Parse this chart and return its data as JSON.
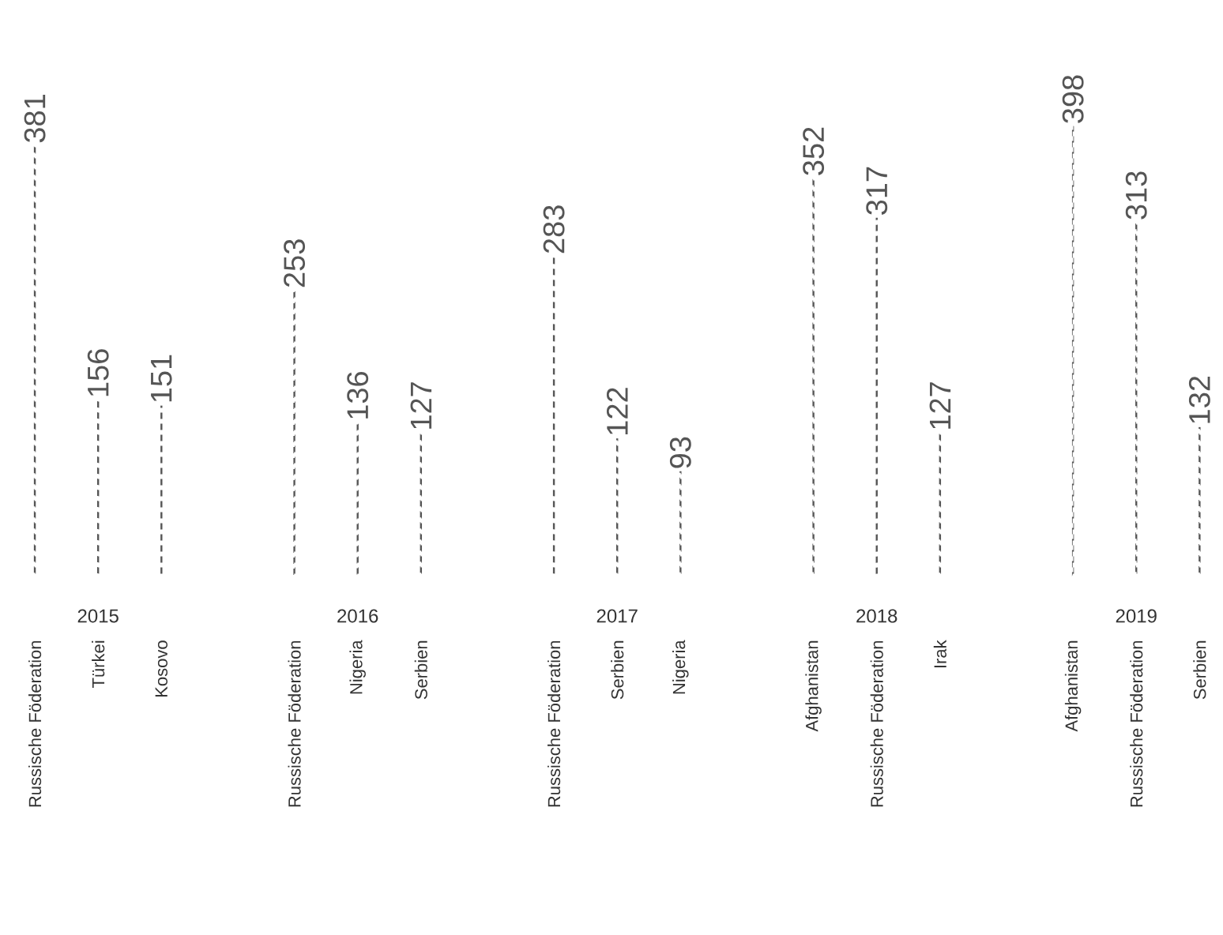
{
  "chart_data": {
    "type": "bar",
    "categories": [
      "Russische Föderation",
      "Türkei",
      "Kosovo",
      "Russische Föderation",
      "Nigeria",
      "Serbien",
      "Russische Föderation",
      "Serbien",
      "Nigeria",
      "Afghanistan",
      "Russische Föderation",
      "Irak",
      "Afghanistan",
      "Russische Föderation",
      "Serbien"
    ],
    "values": [
      381,
      156,
      151,
      253,
      136,
      127,
      283,
      122,
      93,
      352,
      317,
      127,
      398,
      313,
      132
    ],
    "color": "#555555",
    "line_style": "dashed",
    "data_labels": true,
    "annotations": [
      "2015",
      "2016",
      "2017",
      "2018",
      "2019"
    ]
  }
}
